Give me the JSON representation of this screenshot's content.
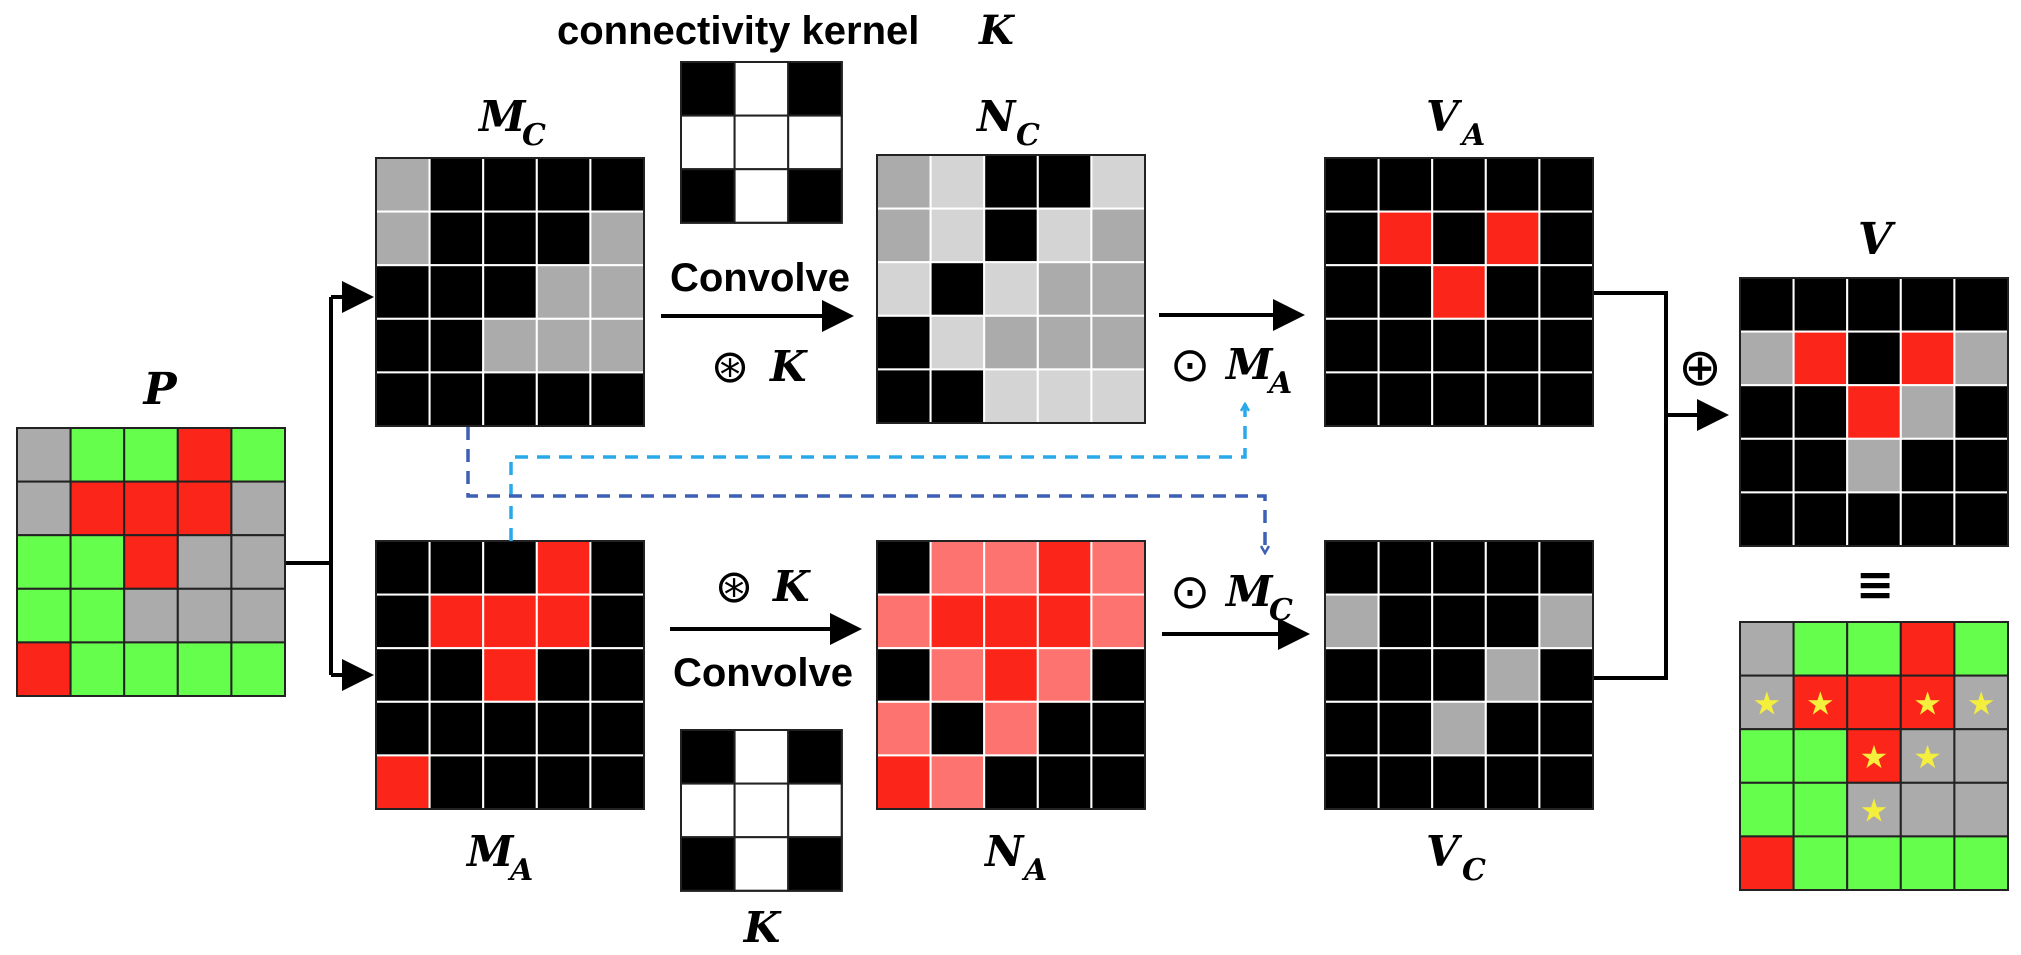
{
  "colors": {
    "k": "#000000",
    "g": "#ababab",
    "lg": "#d4d4d4",
    "r": "#fb2519",
    "lr": "#fc7370",
    "gr": "#66fe4c",
    "w": "#ffffff",
    "grid_line_white": "#ffffff",
    "grid_line_dark": "#222222",
    "arrow": "#000000",
    "dash_light": "#29a9ea",
    "dash_dark": "#3d5fb4"
  },
  "labels": {
    "kernel_title": "connectivity kernel",
    "kernel_title_var": "K",
    "P": "P",
    "M": "M",
    "N": "N",
    "V": "V",
    "sub_C": "C",
    "sub_A": "A",
    "K": "K",
    "convolve": "Convolve",
    "conv_op": "⊛",
    "hadamard": "⊙",
    "oplus": "⊕",
    "equiv": "≡"
  },
  "grids": {
    "P": [
      [
        "g",
        "gr",
        "gr",
        "r",
        "gr"
      ],
      [
        "g",
        "r",
        "r",
        "r",
        "g"
      ],
      [
        "gr",
        "gr",
        "r",
        "g",
        "g"
      ],
      [
        "gr",
        "gr",
        "g",
        "g",
        "g"
      ],
      [
        "r",
        "gr",
        "gr",
        "gr",
        "gr"
      ]
    ],
    "MC": [
      [
        "g",
        "k",
        "k",
        "k",
        "k"
      ],
      [
        "g",
        "k",
        "k",
        "k",
        "g"
      ],
      [
        "k",
        "k",
        "k",
        "g",
        "g"
      ],
      [
        "k",
        "k",
        "g",
        "g",
        "g"
      ],
      [
        "k",
        "k",
        "k",
        "k",
        "k"
      ]
    ],
    "MA": [
      [
        "k",
        "k",
        "k",
        "r",
        "k"
      ],
      [
        "k",
        "r",
        "r",
        "r",
        "k"
      ],
      [
        "k",
        "k",
        "r",
        "k",
        "k"
      ],
      [
        "k",
        "k",
        "k",
        "k",
        "k"
      ],
      [
        "r",
        "k",
        "k",
        "k",
        "k"
      ]
    ],
    "K_top": [
      [
        "k",
        "w",
        "k"
      ],
      [
        "w",
        "w",
        "w"
      ],
      [
        "k",
        "w",
        "k"
      ]
    ],
    "K_bottom": [
      [
        "k",
        "w",
        "k"
      ],
      [
        "w",
        "w",
        "w"
      ],
      [
        "k",
        "w",
        "k"
      ]
    ],
    "NC": [
      [
        "g",
        "lg",
        "k",
        "k",
        "lg"
      ],
      [
        "g",
        "lg",
        "k",
        "lg",
        "g"
      ],
      [
        "lg",
        "k",
        "lg",
        "g",
        "g"
      ],
      [
        "k",
        "lg",
        "g",
        "g",
        "g"
      ],
      [
        "k",
        "k",
        "lg",
        "lg",
        "lg"
      ]
    ],
    "NA": [
      [
        "k",
        "lr",
        "lr",
        "r",
        "lr"
      ],
      [
        "lr",
        "r",
        "r",
        "r",
        "lr"
      ],
      [
        "k",
        "lr",
        "r",
        "lr",
        "k"
      ],
      [
        "lr",
        "k",
        "lr",
        "k",
        "k"
      ],
      [
        "r",
        "lr",
        "k",
        "k",
        "k"
      ]
    ],
    "VA": [
      [
        "k",
        "k",
        "k",
        "k",
        "k"
      ],
      [
        "k",
        "r",
        "k",
        "r",
        "k"
      ],
      [
        "k",
        "k",
        "r",
        "k",
        "k"
      ],
      [
        "k",
        "k",
        "k",
        "k",
        "k"
      ],
      [
        "k",
        "k",
        "k",
        "k",
        "k"
      ]
    ],
    "VC": [
      [
        "k",
        "k",
        "k",
        "k",
        "k"
      ],
      [
        "g",
        "k",
        "k",
        "k",
        "g"
      ],
      [
        "k",
        "k",
        "k",
        "g",
        "k"
      ],
      [
        "k",
        "k",
        "g",
        "k",
        "k"
      ],
      [
        "k",
        "k",
        "k",
        "k",
        "k"
      ]
    ],
    "V": [
      [
        "k",
        "k",
        "k",
        "k",
        "k"
      ],
      [
        "g",
        "r",
        "k",
        "r",
        "g"
      ],
      [
        "k",
        "k",
        "r",
        "g",
        "k"
      ],
      [
        "k",
        "k",
        "g",
        "k",
        "k"
      ],
      [
        "k",
        "k",
        "k",
        "k",
        "k"
      ]
    ],
    "Vout": [
      [
        "g",
        "gr",
        "gr",
        "r",
        "gr"
      ],
      [
        "g",
        "r",
        "r",
        "r",
        "g"
      ],
      [
        "gr",
        "gr",
        "r",
        "g",
        "g"
      ],
      [
        "gr",
        "gr",
        "g",
        "g",
        "g"
      ],
      [
        "r",
        "gr",
        "gr",
        "gr",
        "gr"
      ]
    ]
  },
  "stars": [
    [
      1,
      0
    ],
    [
      1,
      1
    ],
    [
      1,
      3
    ],
    [
      1,
      4
    ],
    [
      2,
      2
    ],
    [
      2,
      3
    ],
    [
      3,
      2
    ]
  ],
  "star_glyph": "★"
}
